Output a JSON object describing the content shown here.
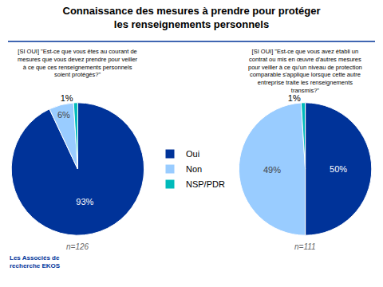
{
  "title": "Connaissance des mesures à prendre pour protéger\nles renseignements personnels",
  "annotations": [
    "Les Associés de\nrecherche EKOS"
  ],
  "chart_data": [
    {
      "type": "pie",
      "subtitle": "[SI OUI] \"Est-ce que vous êtes au courant de\nmesures que vous devez prendre pour veiller\nà ce que ces renseignements personnels\nsoient protégés?\"",
      "categories": [
        "Oui",
        "Non",
        "NSP/PDR"
      ],
      "values": [
        93,
        6,
        1
      ],
      "value_labels": [
        "93%",
        "6%",
        "1%"
      ],
      "colors": [
        "#003399",
        "#99ccff",
        "#00bbbb"
      ],
      "annotations": [
        "n=126"
      ],
      "data_labels": true,
      "legend": "center"
    },
    {
      "type": "pie",
      "subtitle": "[SI OUI] \"Est-ce que vous avez établi un\ncontrat ou mis en œuvre d'autres mesures\npour veiller à ce qu'un niveau de protection\ncomparable s'applique lorsque cette autre\nentreprise traite les renseignements\ntransmis?\"",
      "categories": [
        "Oui",
        "Non",
        "NSP/PDR"
      ],
      "values": [
        50,
        49,
        1
      ],
      "value_labels": [
        "50%",
        "49%",
        "1%"
      ],
      "colors": [
        "#003399",
        "#99ccff",
        "#00bbbb"
      ],
      "annotations": [
        "n=111"
      ],
      "data_labels": true,
      "legend": "center"
    }
  ]
}
